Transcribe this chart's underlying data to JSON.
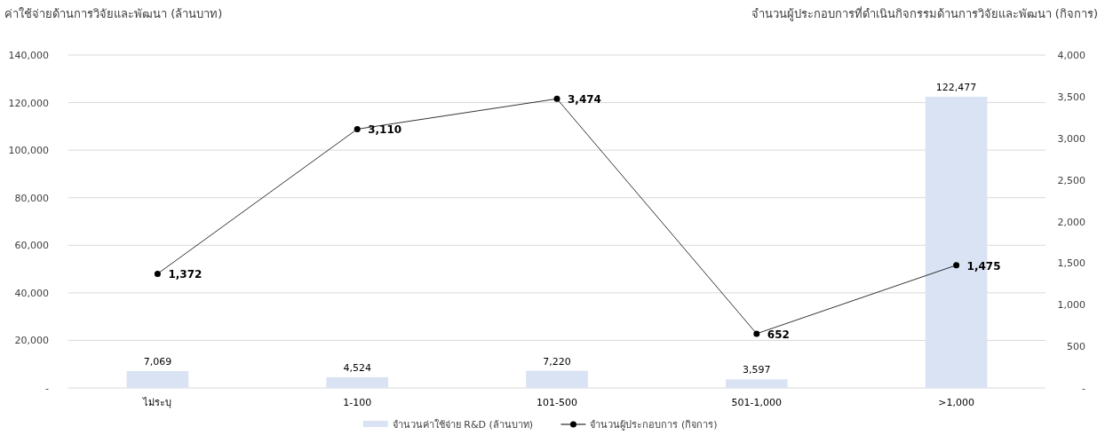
{
  "chart_data": {
    "type": "bar",
    "ylabel": "ค่าใช้จ่ายด้านการวิจัยและพัฒนา  (ล้านบาท)",
    "y2label": "จำนวนผู้ประกอบการที่ดำเนินกิจกรรมด้านการวิจัยและพัฒนา (กิจการ)",
    "categories": [
      "ไม่ระบุ",
      "1-100",
      "101-500",
      "501-1,000",
      ">1,000"
    ],
    "series": [
      {
        "name": "จำนวนค่าใช้จ่าย R&D (ล้านบาท)",
        "color": "#dae3f3",
        "values": [
          7069,
          4524,
          7220,
          3597,
          122477
        ],
        "value_labels": [
          "7,069",
          "4,524",
          "7,220",
          "3,597",
          "122,477"
        ]
      },
      {
        "name": "จำนวนผู้ประกอบการ (กิจการ)",
        "type": "line",
        "axis": "y2",
        "color": "#000000",
        "marker": "circle",
        "values": [
          1372,
          3110,
          3474,
          652,
          1475
        ],
        "value_labels": [
          "1,372",
          "3,110",
          "3,474",
          "652",
          "1,475"
        ]
      }
    ],
    "ylim": [
      0,
      140000
    ],
    "yticks": [
      {
        "value": 0,
        "label": "-"
      },
      {
        "value": 20000,
        "label": "20,000"
      },
      {
        "value": 40000,
        "label": "40,000"
      },
      {
        "value": 60000,
        "label": "60,000"
      },
      {
        "value": 80000,
        "label": "80,000"
      },
      {
        "value": 100000,
        "label": "100,000"
      },
      {
        "value": 120000,
        "label": "120,000"
      },
      {
        "value": 140000,
        "label": "140,000"
      }
    ],
    "y2lim": [
      0,
      4000
    ],
    "y2ticks": [
      {
        "value": 0,
        "label": "-"
      },
      500,
      {
        "value": 1000,
        "label": "1,000"
      },
      {
        "value": 1500,
        "label": "1,500"
      },
      {
        "value": 2000,
        "label": "2,000"
      },
      {
        "value": 2500,
        "label": "2,500"
      },
      {
        "value": 3000,
        "label": "3,000"
      },
      {
        "value": 3500,
        "label": "3,500"
      },
      {
        "value": 4000,
        "label": "4,000"
      }
    ],
    "grid": "y",
    "legend": "bottom"
  }
}
